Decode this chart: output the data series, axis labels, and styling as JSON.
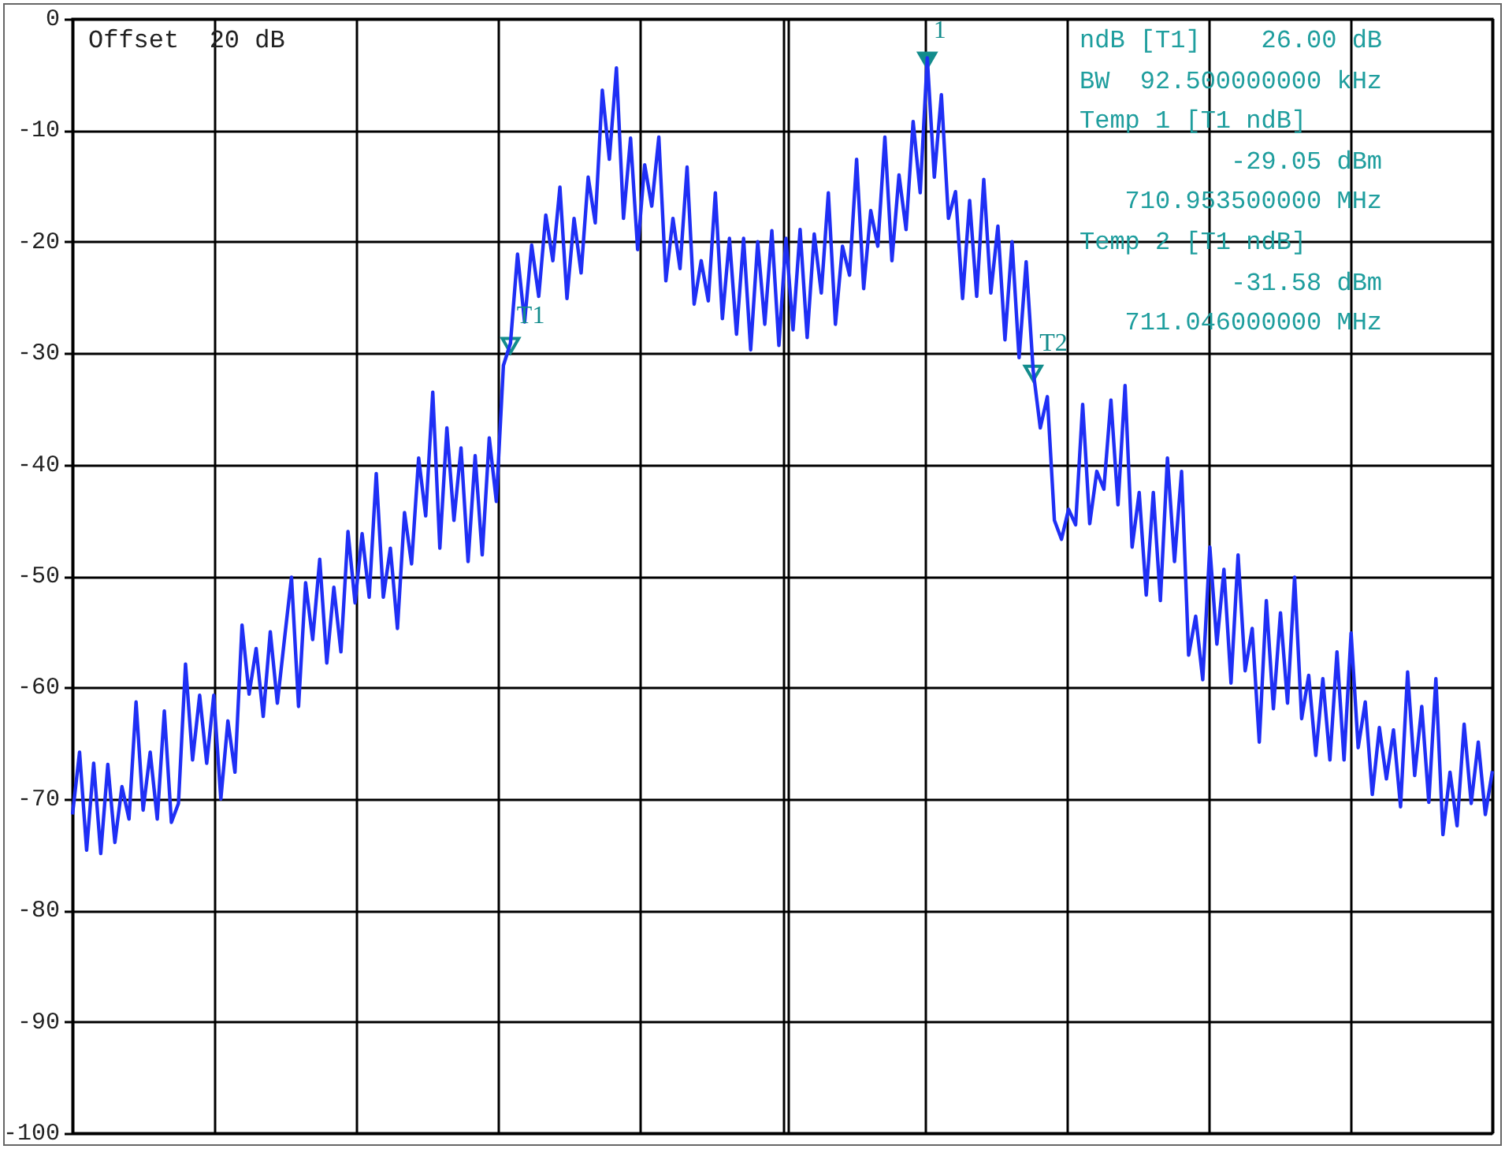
{
  "chart_data": {
    "type": "line",
    "annotations": [
      "Offset  20 dB",
      "ndB [T1]    26.00 dB",
      "BW  92.500000000 kHz",
      "Temp 1 [T1 ndB]",
      "          -29.05 dBm",
      "   710.953500000 MHz",
      "Temp 2 [T1 ndB]",
      "          -31.58 dBm",
      "   711.046000000 MHz"
    ],
    "categories": [
      null,
      null,
      null,
      null,
      null,
      null,
      null,
      null,
      null,
      null,
      null,
      null,
      null,
      null,
      null,
      null,
      null,
      null,
      null,
      null,
      null,
      null,
      null,
      null,
      null,
      null,
      null,
      null,
      null,
      null,
      null,
      null,
      null,
      null,
      null,
      null,
      null,
      null,
      null,
      null,
      null,
      null,
      null,
      null,
      null,
      null,
      null,
      null,
      null,
      null,
      null,
      null,
      null,
      null,
      null,
      null,
      null,
      null,
      null,
      null,
      null,
      null,
      null,
      null,
      null,
      null,
      null,
      null,
      null,
      null,
      null,
      null,
      null,
      null,
      null,
      null,
      null,
      null,
      null,
      null,
      null,
      null,
      null,
      null,
      null,
      null,
      null,
      null,
      null,
      null,
      null,
      null,
      null,
      null,
      null,
      null,
      null,
      null,
      null,
      null,
      null,
      null,
      null,
      null,
      null,
      null,
      null,
      null,
      null,
      null,
      null,
      null,
      null,
      null,
      null,
      null,
      null,
      null,
      null,
      null,
      null,
      null,
      null,
      null,
      null,
      null,
      null,
      null,
      null,
      null,
      null,
      null,
      null,
      null,
      null,
      null,
      null,
      null,
      null,
      null,
      null,
      null,
      null,
      null,
      null,
      null,
      null,
      null,
      null,
      null,
      null,
      null,
      null,
      null,
      null,
      null,
      null,
      null,
      null,
      null,
      null,
      null,
      null,
      null,
      null,
      null,
      null,
      null,
      null,
      null,
      null,
      null,
      null,
      null,
      null,
      null,
      null,
      null,
      null,
      null,
      null,
      null,
      null,
      null,
      null,
      null,
      null,
      null,
      null,
      null,
      null,
      null,
      null,
      null,
      null,
      null,
      null,
      null,
      null,
      null,
      null,
      null
    ],
    "series": [
      {
        "color": "#1f2ff5",
        "type": "line",
        "marker": "none",
        "values": [
          -71.4,
          -65.8,
          -74.6,
          -66.8,
          -74.9,
          -66.9,
          -73.9,
          -68.9,
          -71.8,
          -61.3,
          -71,
          -65.8,
          -71.8,
          -62.1,
          -72.1,
          -70.4,
          -57.9,
          -66.5,
          -60.7,
          -66.8,
          -60.7,
          -70,
          -63,
          -67.6,
          -54.4,
          -60.6,
          -56.5,
          -62.6,
          -55,
          -61.4,
          -55.7,
          -50.1,
          -61.7,
          -50.6,
          -55.7,
          -48.5,
          -57.8,
          -51,
          -56.8,
          -46,
          -52.4,
          -46.2,
          -51.9,
          -40.8,
          -51.9,
          -47.5,
          -54.7,
          -44.3,
          -48.9,
          -39.4,
          -44.6,
          -33.5,
          -47.5,
          -36.7,
          -45,
          -38.5,
          -48.7,
          -39.2,
          -48.1,
          -37.6,
          -43.3,
          -31.1,
          -29.1,
          -21.1,
          -27.2,
          -20.3,
          -24.9,
          -17.6,
          -21.7,
          -15.1,
          -25.1,
          -17.9,
          -22.8,
          -14.2,
          -18.3,
          -6.4,
          -12.6,
          -4.4,
          -17.9,
          -10.7,
          -20.7,
          -13.1,
          -16.8,
          -10.6,
          -23.5,
          -17.9,
          -22.4,
          -13.3,
          -25.6,
          -21.7,
          -25.3,
          -15.6,
          -26.9,
          -19.7,
          -28.3,
          -19.7,
          -29.7,
          -20,
          -27.4,
          -19,
          -29.3,
          -19.7,
          -27.9,
          -18.9,
          -28.6,
          -19.3,
          -24.6,
          -15.6,
          -27.4,
          -20.4,
          -23,
          -12.6,
          -24.2,
          -17.2,
          -20.4,
          -10.6,
          -21.7,
          -14,
          -18.9,
          -9.2,
          -15.6,
          -3.5,
          -14.2,
          -6.8,
          -17.9,
          -15.5,
          -25.1,
          -16.3,
          -24.9,
          -14.4,
          -24.6,
          -18.6,
          -28.8,
          -20,
          -30.4,
          -21.8,
          -31.6,
          -36.7,
          -33.9,
          -45,
          -46.7,
          -44,
          -45.4,
          -34.6,
          -45.3,
          -40.6,
          -42.2,
          -34.2,
          -43.6,
          -32.9,
          -47.4,
          -42.5,
          -51.7,
          -42.5,
          -52.2,
          -39.4,
          -48.7,
          -40.6,
          -57.1,
          -53.6,
          -59.3,
          -47.4,
          -56.1,
          -49.4,
          -59.6,
          -48.1,
          -58.5,
          -54.7,
          -64.9,
          -52.2,
          -61.9,
          -53.3,
          -61.4,
          -50.1,
          -62.8,
          -58.9,
          -66.1,
          -59.2,
          -66.5,
          -56.8,
          -66.5,
          -55.1,
          -65.4,
          -61.3,
          -69.6,
          -63.6,
          -68.2,
          -63.8,
          -70.7,
          -58.6,
          -67.9,
          -61.7,
          -70.3,
          -59.2,
          -73.2,
          -67.6,
          -72.4,
          -63.3,
          -70.4,
          -64.9,
          -71.4,
          -67.5
        ]
      },
      {
        "name": "1",
        "color": "#138c8c",
        "type": "scatter",
        "marker": "triangle",
        "values": [
          null,
          null,
          null,
          null,
          null,
          null,
          null,
          null,
          null,
          null,
          null,
          null,
          null,
          null,
          null,
          null,
          null,
          null,
          null,
          null,
          null,
          null,
          null,
          null,
          null,
          null,
          null,
          null,
          null,
          null,
          null,
          null,
          null,
          null,
          null,
          null,
          null,
          null,
          null,
          null,
          null,
          null,
          null,
          null,
          null,
          null,
          null,
          null,
          null,
          null,
          null,
          null,
          null,
          null,
          null,
          null,
          null,
          null,
          null,
          null,
          null,
          null,
          null,
          null,
          null,
          null,
          null,
          null,
          null,
          null,
          null,
          null,
          null,
          null,
          null,
          null,
          null,
          null,
          null,
          null,
          null,
          null,
          null,
          null,
          null,
          null,
          null,
          null,
          null,
          null,
          null,
          null,
          null,
          null,
          null,
          null,
          null,
          null,
          null,
          null,
          null,
          null,
          null,
          null,
          null,
          null,
          null,
          null,
          null,
          null,
          null,
          null,
          null,
          null,
          null,
          null,
          null,
          null,
          null,
          null,
          null,
          -3.5,
          null,
          null,
          null,
          null,
          null,
          null,
          null,
          null,
          null,
          null,
          null,
          null,
          null,
          null,
          null,
          null,
          null,
          null,
          null,
          null,
          null,
          null,
          null,
          null,
          null,
          null,
          null,
          null,
          null,
          null,
          null,
          null,
          null,
          null,
          null,
          null,
          null,
          null,
          null,
          null,
          null,
          null,
          null,
          null,
          null,
          null,
          null,
          null,
          null,
          null,
          null,
          null,
          null,
          null,
          null,
          null,
          null,
          null,
          null,
          null,
          null,
          null,
          null,
          null,
          null,
          null,
          null,
          null,
          null,
          null,
          null,
          null,
          null,
          null,
          null,
          null,
          null,
          null,
          null,
          null
        ]
      },
      {
        "name": "T1",
        "color": "#138c8c",
        "type": "scatter",
        "marker": "triangle",
        "values": [
          null,
          null,
          null,
          null,
          null,
          null,
          null,
          null,
          null,
          null,
          null,
          null,
          null,
          null,
          null,
          null,
          null,
          null,
          null,
          null,
          null,
          null,
          null,
          null,
          null,
          null,
          null,
          null,
          null,
          null,
          null,
          null,
          null,
          null,
          null,
          null,
          null,
          null,
          null,
          null,
          null,
          null,
          null,
          null,
          null,
          null,
          null,
          null,
          null,
          null,
          null,
          null,
          null,
          null,
          null,
          null,
          null,
          null,
          null,
          null,
          null,
          null,
          -29.1,
          null,
          null,
          null,
          null,
          null,
          null,
          null,
          null,
          null,
          null,
          null,
          null,
          null,
          null,
          null,
          null,
          null,
          null,
          null,
          null,
          null,
          null,
          null,
          null,
          null,
          null,
          null,
          null,
          null,
          null,
          null,
          null,
          null,
          null,
          null,
          null,
          null,
          null,
          null,
          null,
          null,
          null,
          null,
          null,
          null,
          null,
          null,
          null,
          null,
          null,
          null,
          null,
          null,
          null,
          null,
          null,
          null,
          null,
          null,
          null,
          null,
          null,
          null,
          null,
          null,
          null,
          null,
          null,
          null,
          null,
          null,
          null,
          null,
          null,
          null,
          null,
          null,
          null,
          null,
          null,
          null,
          null,
          null,
          null,
          null,
          null,
          null,
          null,
          null,
          null,
          null,
          null,
          null,
          null,
          null,
          null,
          null,
          null,
          null,
          null,
          null,
          null,
          null,
          null,
          null,
          null,
          null,
          null,
          null,
          null,
          null,
          null,
          null,
          null,
          null,
          null,
          null,
          null,
          null,
          null,
          null,
          null,
          null,
          null,
          null,
          null,
          null,
          null,
          null,
          null,
          null,
          null,
          null,
          null,
          null,
          null,
          null,
          null,
          null
        ]
      },
      {
        "name": "T2",
        "color": "#138c8c",
        "type": "scatter",
        "marker": "triangle",
        "values": [
          null,
          null,
          null,
          null,
          null,
          null,
          null,
          null,
          null,
          null,
          null,
          null,
          null,
          null,
          null,
          null,
          null,
          null,
          null,
          null,
          null,
          null,
          null,
          null,
          null,
          null,
          null,
          null,
          null,
          null,
          null,
          null,
          null,
          null,
          null,
          null,
          null,
          null,
          null,
          null,
          null,
          null,
          null,
          null,
          null,
          null,
          null,
          null,
          null,
          null,
          null,
          null,
          null,
          null,
          null,
          null,
          null,
          null,
          null,
          null,
          null,
          null,
          null,
          null,
          null,
          null,
          null,
          null,
          null,
          null,
          null,
          null,
          null,
          null,
          null,
          null,
          null,
          null,
          null,
          null,
          null,
          null,
          null,
          null,
          null,
          null,
          null,
          null,
          null,
          null,
          null,
          null,
          null,
          null,
          null,
          null,
          null,
          null,
          null,
          null,
          null,
          null,
          null,
          null,
          null,
          null,
          null,
          null,
          null,
          null,
          null,
          null,
          null,
          null,
          null,
          null,
          null,
          null,
          null,
          null,
          null,
          null,
          null,
          null,
          null,
          null,
          null,
          null,
          null,
          null,
          null,
          null,
          null,
          null,
          null,
          null,
          -31.6,
          null,
          null,
          null,
          null,
          null,
          null,
          null,
          null,
          null,
          null,
          null,
          null,
          null,
          null,
          null,
          null,
          null,
          null,
          null,
          null,
          null,
          null,
          null,
          null,
          null,
          null,
          null,
          null,
          null,
          null,
          null,
          null,
          null,
          null,
          null,
          null,
          null,
          null,
          null,
          null,
          null,
          null,
          null,
          null,
          null,
          null,
          null,
          null,
          null,
          null,
          null,
          null,
          null,
          null,
          null,
          null,
          null,
          null,
          null,
          null,
          null,
          null,
          null,
          null,
          null
        ]
      }
    ],
    "ylim": [
      -100,
      0
    ],
    "yticks": [
      0,
      -10,
      -20,
      -30,
      -40,
      -50,
      -60,
      -70,
      -80,
      -90,
      -100
    ],
    "grid": true,
    "legend": false,
    "line_style": "solid"
  }
}
